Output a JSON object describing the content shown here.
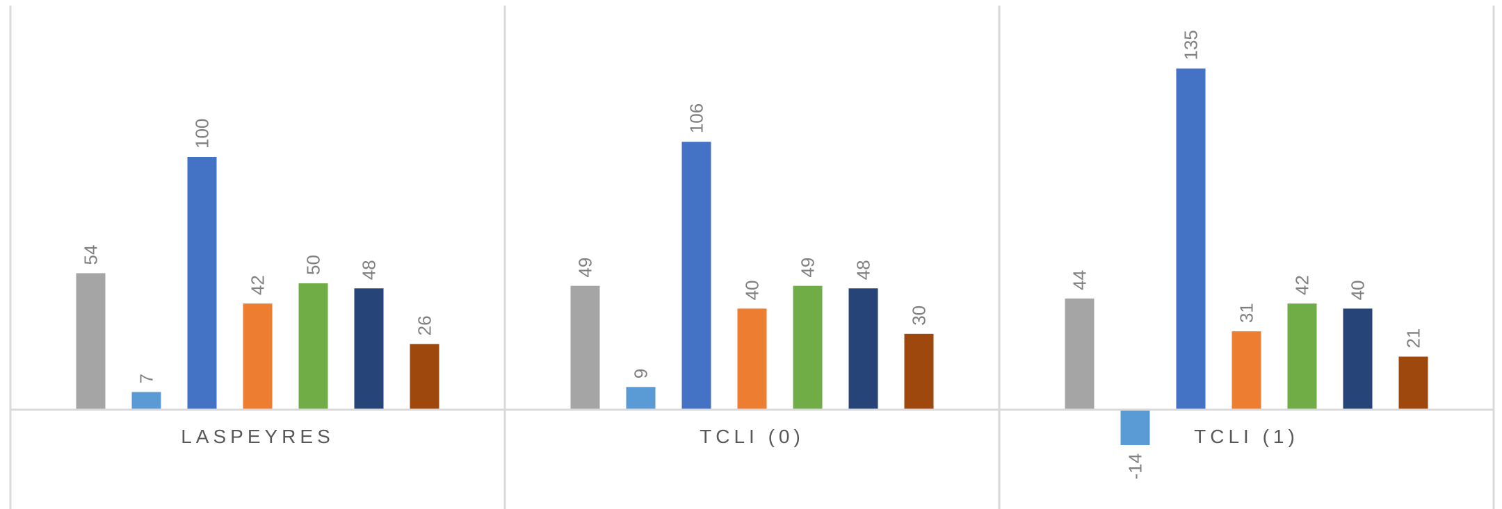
{
  "chart_data": {
    "type": "bar",
    "categories": [
      "LASPEYRES",
      "TCLI (0)",
      "TCLI (1)"
    ],
    "series": [
      {
        "color": "#a5a5a5",
        "values": [
          54,
          49,
          44
        ]
      },
      {
        "color": "#5b9bd5",
        "values": [
          7,
          9,
          -14
        ]
      },
      {
        "color": "#4472c4",
        "values": [
          100,
          106,
          135
        ]
      },
      {
        "color": "#ed7d31",
        "values": [
          42,
          40,
          31
        ]
      },
      {
        "color": "#70ad47",
        "values": [
          50,
          49,
          42
        ]
      },
      {
        "color": "#264478",
        "values": [
          48,
          48,
          40
        ]
      },
      {
        "color": "#9e480e",
        "values": [
          26,
          30,
          21
        ]
      }
    ],
    "grid": false,
    "legend": "none",
    "data_labels": true,
    "data_label_rotation": -90
  }
}
